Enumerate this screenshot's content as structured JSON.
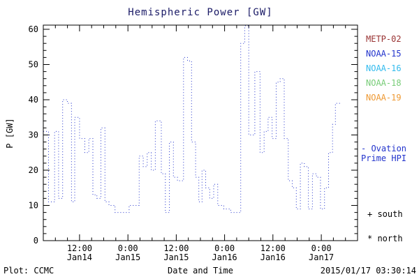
{
  "title": "Hemispheric Power [GW]",
  "footer": {
    "plot_credit": "Plot: CCMC",
    "timestamp": "2015/01/17 03:30:14"
  },
  "legend": {
    "satellites": [
      {
        "label": "METP-02",
        "color": "#993333"
      },
      {
        "label": "NOAA-15",
        "color": "#2233cc"
      },
      {
        "label": "NOAA-16",
        "color": "#33bbee"
      },
      {
        "label": "NOAA-18",
        "color": "#77cc77"
      },
      {
        "label": "NOAA-19",
        "color": "#ee9933"
      }
    ],
    "model_lines": [
      "- Ovation",
      "Prime HPI"
    ],
    "model_color": "#2233cc",
    "south_label": "+ south",
    "north_label": "* north"
  },
  "chart_data": {
    "type": "line",
    "title": "Hemispheric Power [GW]",
    "xlabel": "Date and Time",
    "ylabel": "P [GW]",
    "ylim": [
      0,
      61
    ],
    "yticks": [
      0,
      10,
      20,
      30,
      40,
      50,
      60
    ],
    "x_hours_range": [
      3,
      81
    ],
    "x_hours_end_of_data": 77,
    "hours_since": "2015-01-14 00:00",
    "xticks": [
      {
        "hour": 12,
        "time": "12:00",
        "date": "Jan14"
      },
      {
        "hour": 24,
        "time": "0:00",
        "date": "Jan15"
      },
      {
        "hour": 36,
        "time": "12:00",
        "date": "Jan15"
      },
      {
        "hour": 48,
        "time": "0:00",
        "date": "Jan16"
      },
      {
        "hour": 60,
        "time": "12:00",
        "date": "Jan16"
      },
      {
        "hour": 72,
        "time": "0:00",
        "date": "Jan17"
      }
    ],
    "line_color": "#2233cc",
    "line_style": "dotted-step",
    "grid": false,
    "legend_position": "right",
    "series": [
      {
        "name": "Ovation Prime HPI",
        "step_points": [
          [
            3,
            31
          ],
          [
            4.3,
            11
          ],
          [
            5.8,
            31
          ],
          [
            6.8,
            12
          ],
          [
            7.8,
            40
          ],
          [
            9,
            39
          ],
          [
            10,
            11
          ],
          [
            10.8,
            35
          ],
          [
            12,
            29
          ],
          [
            13.3,
            25
          ],
          [
            14.3,
            29
          ],
          [
            15.3,
            13
          ],
          [
            16.3,
            12
          ],
          [
            17.3,
            32
          ],
          [
            18.3,
            11
          ],
          [
            19.3,
            10
          ],
          [
            20.8,
            8
          ],
          [
            22.8,
            8
          ],
          [
            24.3,
            10
          ],
          [
            25.8,
            10
          ],
          [
            26.8,
            24
          ],
          [
            27.8,
            21
          ],
          [
            28.8,
            25
          ],
          [
            29.8,
            20
          ],
          [
            30.8,
            34
          ],
          [
            32.3,
            19
          ],
          [
            33.3,
            8
          ],
          [
            34.3,
            28
          ],
          [
            35.3,
            18
          ],
          [
            36.3,
            17
          ],
          [
            37.8,
            52
          ],
          [
            38.8,
            51
          ],
          [
            39.8,
            28
          ],
          [
            40.8,
            18
          ],
          [
            41.6,
            11
          ],
          [
            42.4,
            20
          ],
          [
            43.3,
            15
          ],
          [
            44.3,
            12
          ],
          [
            45.3,
            16
          ],
          [
            46.3,
            10
          ],
          [
            47.8,
            9
          ],
          [
            49.5,
            8
          ],
          [
            52,
            56
          ],
          [
            53,
            61
          ],
          [
            54,
            30
          ],
          [
            55.5,
            48
          ],
          [
            56.8,
            25
          ],
          [
            57.8,
            31
          ],
          [
            58.8,
            35
          ],
          [
            59.8,
            29
          ],
          [
            60.8,
            45
          ],
          [
            61.8,
            46
          ],
          [
            62.8,
            29
          ],
          [
            63.8,
            17
          ],
          [
            64.8,
            15
          ],
          [
            65.8,
            9
          ],
          [
            66.8,
            22
          ],
          [
            67.8,
            21
          ],
          [
            68.8,
            9
          ],
          [
            69.8,
            19
          ],
          [
            70.8,
            18
          ],
          [
            71.8,
            9
          ],
          [
            72.8,
            15
          ],
          [
            73.8,
            25
          ],
          [
            74.8,
            33
          ],
          [
            75.5,
            39
          ]
        ]
      }
    ]
  }
}
